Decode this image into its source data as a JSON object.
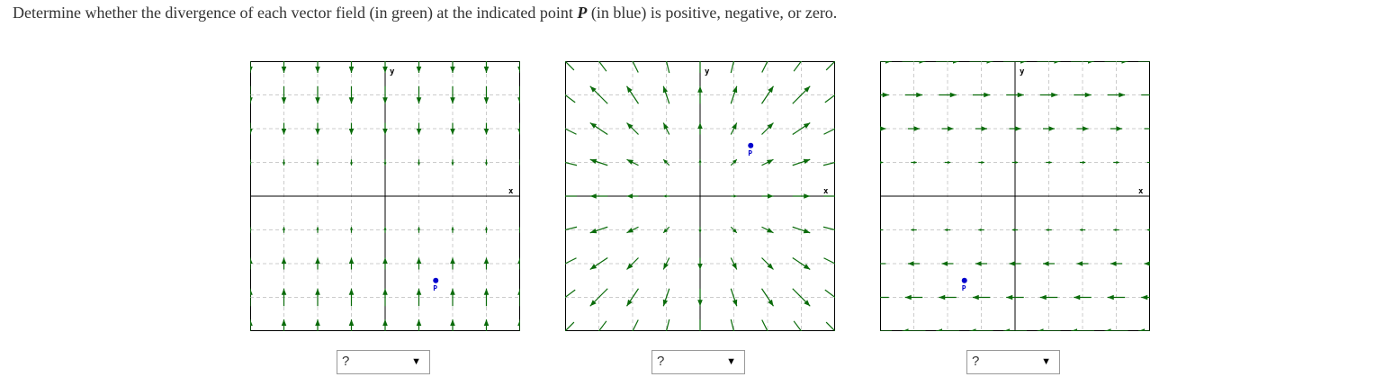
{
  "question": {
    "before": "Determine whether the divergence of each vector field (in green) at the indicated point ",
    "var": "P",
    "after": " (in blue) is positive, negative, or zero."
  },
  "colors": {
    "arrow": "#0a6b0a",
    "point": "#0000cc",
    "grid": "#cccccc",
    "axis": "#000000"
  },
  "axis_labels": {
    "x": "x",
    "y": "y"
  },
  "point_label": "P",
  "panels": [
    {
      "field": "vertical-converging",
      "point": [
        1.5,
        -2.5
      ]
    },
    {
      "field": "radial-outward",
      "point": [
        1.5,
        1.5
      ]
    },
    {
      "field": "horizontal-sign-y",
      "point": [
        -1.5,
        -2.5
      ]
    }
  ],
  "answers": [
    {
      "selected": "?"
    },
    {
      "selected": "?"
    },
    {
      "selected": "?"
    }
  ]
}
